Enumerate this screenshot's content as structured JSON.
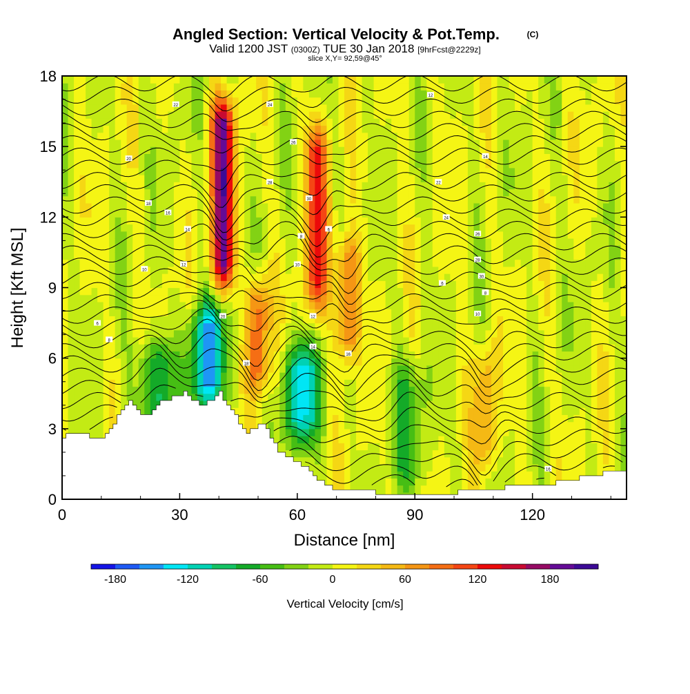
{
  "header": {
    "title": "Angled Section: Vertical Velocity & Pot.Temp.",
    "title_badge": "(C)",
    "valid_prefix": "Valid 1200 JST",
    "valid_zulu": "(0300Z)",
    "valid_date": "TUE 30 Jan 2018",
    "valid_fcst": "[9hrFcst@2229z]",
    "slice": "slice X,Y= 92,59@45°"
  },
  "chart_data": {
    "type": "heatmap",
    "title": "Angled Section: Vertical Velocity & Pot.Temp.",
    "xlabel": "Distance [nm]",
    "ylabel": "Height [Kft MSL]",
    "xlim": [
      0,
      144
    ],
    "ylim": [
      0,
      18
    ],
    "xticks": [
      0,
      30,
      60,
      90,
      120
    ],
    "yticks": [
      0,
      3,
      6,
      9,
      12,
      15,
      18
    ],
    "colorbar": {
      "label": "Vertical Velocity [cm/s]",
      "ticks": [
        -180,
        -120,
        -60,
        0,
        60,
        120,
        180
      ],
      "bounds": [
        -200,
        220
      ],
      "step": 20,
      "colors": [
        "#1414e6",
        "#1e5af5",
        "#1e96f5",
        "#00e6f5",
        "#00d2b4",
        "#14c364",
        "#14aa28",
        "#46be14",
        "#82d214",
        "#c3eb14",
        "#f5f514",
        "#f5d714",
        "#f5b914",
        "#f59614",
        "#f56e14",
        "#f54614",
        "#eb0a0a",
        "#c80a32",
        "#960a64",
        "#640a96",
        "#3c0a96"
      ]
    },
    "vertical_velocity_features": [
      {
        "x": 41,
        "y_bottom": 8,
        "y_top": 18,
        "peak_cm_s": 180,
        "kind": "updraft"
      },
      {
        "x": 65,
        "y_bottom": 7,
        "y_top": 17,
        "peak_cm_s": 120,
        "kind": "updraft"
      },
      {
        "x": 73,
        "y_bottom": 6,
        "y_top": 11,
        "peak_cm_s": 100,
        "kind": "updraft"
      },
      {
        "x": 50,
        "y_bottom": 5,
        "y_top": 9,
        "peak_cm_s": 100,
        "kind": "updraft"
      },
      {
        "x": 37,
        "y_bottom": 4,
        "y_top": 8,
        "peak_cm_s": -130,
        "kind": "downdraft"
      },
      {
        "x": 61,
        "y_bottom": 3,
        "y_top": 6,
        "peak_cm_s": -120,
        "kind": "downdraft"
      },
      {
        "x": 24,
        "y_bottom": 4,
        "y_top": 6,
        "peak_cm_s": -90,
        "kind": "downdraft"
      },
      {
        "x": 88,
        "y_bottom": 0.5,
        "y_top": 6,
        "peak_cm_s": -50,
        "kind": "downdraft"
      },
      {
        "x": 108,
        "y_bottom": 1.5,
        "y_top": 6,
        "peak_cm_s": 60,
        "kind": "updraft"
      }
    ],
    "terrain_top_kft": [
      [
        0,
        2.6
      ],
      [
        3,
        2.9
      ],
      [
        10,
        2.5
      ],
      [
        14,
        3.5
      ],
      [
        17,
        4.2
      ],
      [
        21,
        3.5
      ],
      [
        25,
        4.2
      ],
      [
        31,
        4.5
      ],
      [
        36,
        4.0
      ],
      [
        40,
        4.5
      ],
      [
        44,
        3.5
      ],
      [
        47,
        2.8
      ],
      [
        51,
        3.3
      ],
      [
        55,
        2.0
      ],
      [
        60,
        1.6
      ],
      [
        64,
        1.0
      ],
      [
        68,
        0.5
      ],
      [
        80,
        0.3
      ],
      [
        100,
        0.3
      ],
      [
        113,
        0.5
      ],
      [
        125,
        0.7
      ],
      [
        135,
        1.0
      ],
      [
        144,
        1.3
      ]
    ],
    "theta_label_values": [
      "6",
      "8",
      "10",
      "12",
      "14",
      "16",
      "18",
      "20",
      "22",
      "24",
      "26",
      "28",
      "30"
    ]
  }
}
